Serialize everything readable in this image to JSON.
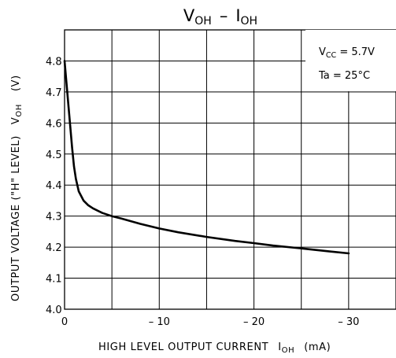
{
  "chart_data": {
    "type": "line",
    "title": {
      "main": "V",
      "main_sub": "OH",
      "sep": "–",
      "second": "I",
      "second_sub": "OH"
    },
    "xlabel": {
      "text": "HIGH LEVEL OUTPUT CURRENT",
      "sym": "I",
      "sym_sub": "OH",
      "unit": "(mA)"
    },
    "ylabel": {
      "text": "OUTPUT VOLTAGE (\"H\" LEVEL)",
      "sym": "V",
      "sym_sub": "OH",
      "unit": "(V)"
    },
    "xlim": [
      0,
      -35
    ],
    "ylim": [
      4.0,
      4.9
    ],
    "xticks": [
      0,
      -10,
      -20,
      -30
    ],
    "xtick_labels": [
      "0",
      "– 10",
      "– 20",
      "– 30"
    ],
    "yticks": [
      4.0,
      4.1,
      4.2,
      4.3,
      4.4,
      4.5,
      4.6,
      4.7,
      4.8
    ],
    "ytick_labels": [
      "4.0",
      "4.1",
      "4.2",
      "4.3",
      "4.4",
      "4.5",
      "4.6",
      "4.7",
      "4.8"
    ],
    "grid": true,
    "annotations": [
      {
        "pre": "V",
        "sub": "CC",
        "post": " = 5.7V"
      },
      {
        "pre": "Ta = 25°C",
        "sub": "",
        "post": ""
      }
    ],
    "series": [
      {
        "x": [
          0,
          -0.2,
          -0.4,
          -0.6,
          -0.8,
          -1.0,
          -1.2,
          -1.5,
          -2,
          -2.5,
          -3,
          -4,
          -5,
          -6,
          -8,
          -10,
          -12,
          -15,
          -18,
          -20,
          -22,
          -25,
          -28,
          -30
        ],
        "y": [
          4.8,
          4.73,
          4.66,
          4.59,
          4.52,
          4.46,
          4.42,
          4.38,
          4.35,
          4.335,
          4.325,
          4.31,
          4.3,
          4.292,
          4.275,
          4.26,
          4.248,
          4.233,
          4.22,
          4.213,
          4.205,
          4.196,
          4.186,
          4.18
        ]
      }
    ]
  }
}
